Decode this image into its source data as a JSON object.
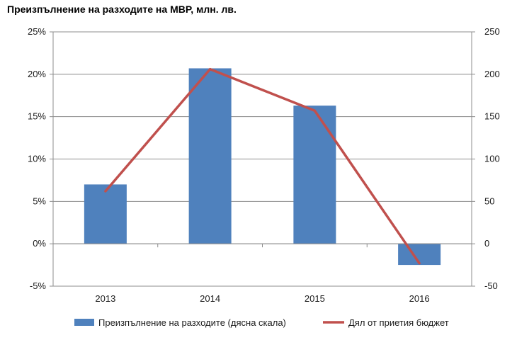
{
  "chart_data": {
    "type": "bar+line",
    "title": "Преизпълнение на разходите на МВР, млн. лв.",
    "categories": [
      "2013",
      "2014",
      "2015",
      "2016"
    ],
    "series": [
      {
        "name": "Преизпълнение на разходите (дясна скала)",
        "type": "bar",
        "axis": "right",
        "values": [
          70,
          207,
          163,
          -25
        ],
        "color": "#4F81BD"
      },
      {
        "name": "Дял от приетия бюджет",
        "type": "line",
        "axis": "left",
        "values": [
          6.2,
          20.6,
          15.7,
          -2.3
        ],
        "color": "#C0504D"
      }
    ],
    "left_axis": {
      "ylim": [
        -5,
        25
      ],
      "ticks": [
        "-5%",
        "0%",
        "5%",
        "10%",
        "15%",
        "20%",
        "25%"
      ]
    },
    "right_axis": {
      "ylim": [
        -50,
        250
      ],
      "ticks": [
        "-50",
        "0",
        "50",
        "100",
        "150",
        "200",
        "250"
      ]
    },
    "grid": "horizontal",
    "legend_position": "bottom"
  }
}
